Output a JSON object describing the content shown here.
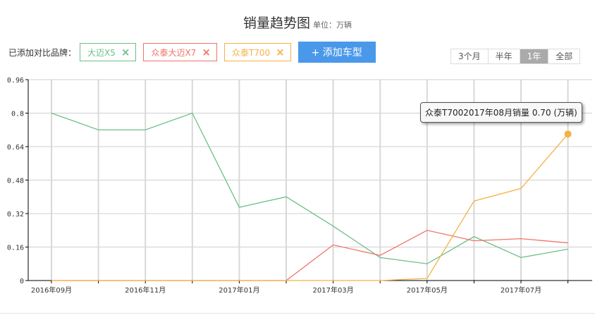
{
  "header": {
    "title": "销量趋势图",
    "unit": "单位：万辆"
  },
  "brands": {
    "label": "已添加对比品牌：",
    "items": [
      {
        "name": "大迈X5",
        "color": "#6dbf87",
        "remove": "×"
      },
      {
        "name": "众泰大迈X7",
        "color": "#ef7468",
        "remove": "×"
      },
      {
        "name": "众泰T700",
        "color": "#f6b143",
        "remove": "×"
      }
    ],
    "add_label": "+ 添加车型"
  },
  "range": {
    "options": [
      "3个月",
      "半年",
      "1年",
      "全部"
    ],
    "selected": "1年"
  },
  "tooltip": {
    "text": "众泰T7002017年08月销量 0.70 (万辆)"
  },
  "chart_data": {
    "type": "line",
    "title": "销量趋势图",
    "ylabel": "单位：万辆",
    "xlabel": "",
    "ylim": [
      0,
      0.96
    ],
    "yticks": [
      0,
      0.16,
      0.32,
      0.48,
      0.64,
      0.8,
      0.96
    ],
    "grid": true,
    "x": [
      "2016年09月",
      "2016年10月",
      "2016年11月",
      "2016年12月",
      "2017年01月",
      "2017年02月",
      "2017年03月",
      "2017年04月",
      "2017年05月",
      "2017年06月",
      "2017年07月",
      "2017年08月"
    ],
    "xtick_labels": [
      "2016年09月",
      "2016年11月",
      "2017年01月",
      "2017年03月",
      "2017年05月",
      "2017年07月"
    ],
    "series": [
      {
        "name": "大迈X5",
        "color": "#6dbf87",
        "values": [
          0.8,
          0.72,
          0.72,
          0.8,
          0.35,
          0.4,
          0.26,
          0.11,
          0.08,
          0.21,
          0.11,
          0.15
        ]
      },
      {
        "name": "众泰大迈X7",
        "color": "#ef7468",
        "values": [
          0,
          0,
          0,
          0,
          0,
          0,
          0.17,
          0.12,
          0.24,
          0.19,
          0.2,
          0.18
        ]
      },
      {
        "name": "众泰T700",
        "color": "#f6b143",
        "values": [
          0,
          0,
          0,
          0,
          0,
          0,
          0,
          0,
          0.01,
          0.38,
          0.44,
          0.7
        ]
      }
    ],
    "highlight": {
      "series": "众泰T700",
      "x": "2017年08月",
      "value": 0.7
    }
  }
}
